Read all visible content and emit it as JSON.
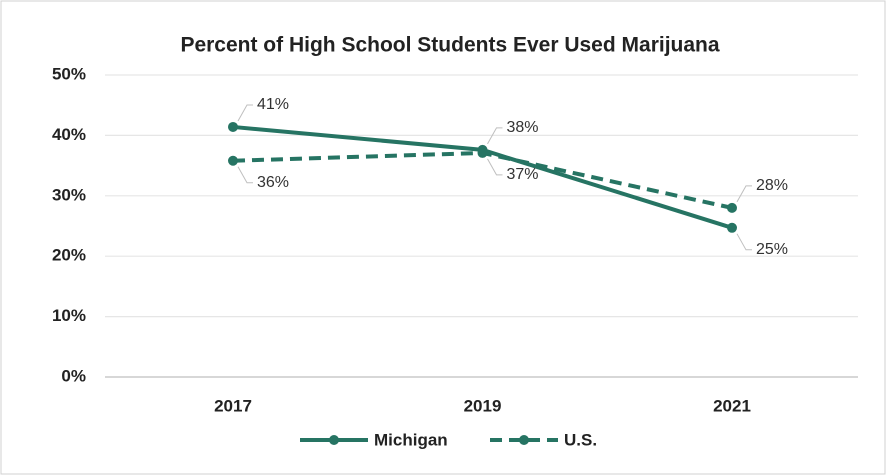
{
  "chart_data": {
    "type": "line",
    "title": "Percent of High School Students Ever Used Marijuana",
    "categories": [
      "2017",
      "2019",
      "2021"
    ],
    "series": [
      {
        "name": "Michigan",
        "color": "#267463",
        "dashed": false,
        "values": [
          41.4,
          37.6,
          24.7
        ],
        "value_labels": [
          "41%",
          "38%",
          "25%"
        ]
      },
      {
        "name": "U.S.",
        "color": "#267463",
        "dashed": true,
        "values": [
          35.8,
          37.1,
          28.0
        ],
        "value_labels": [
          "36%",
          "37%",
          "28%"
        ]
      }
    ],
    "ylim": [
      0,
      50
    ],
    "yticks": [
      {
        "value": 0,
        "label": "0%"
      },
      {
        "value": 10,
        "label": "10%"
      },
      {
        "value": 20,
        "label": "20%"
      },
      {
        "value": 30,
        "label": "30%"
      },
      {
        "value": 40,
        "label": "40%"
      },
      {
        "value": 50,
        "label": "50%"
      }
    ],
    "grid": true,
    "legend": "bottom"
  }
}
